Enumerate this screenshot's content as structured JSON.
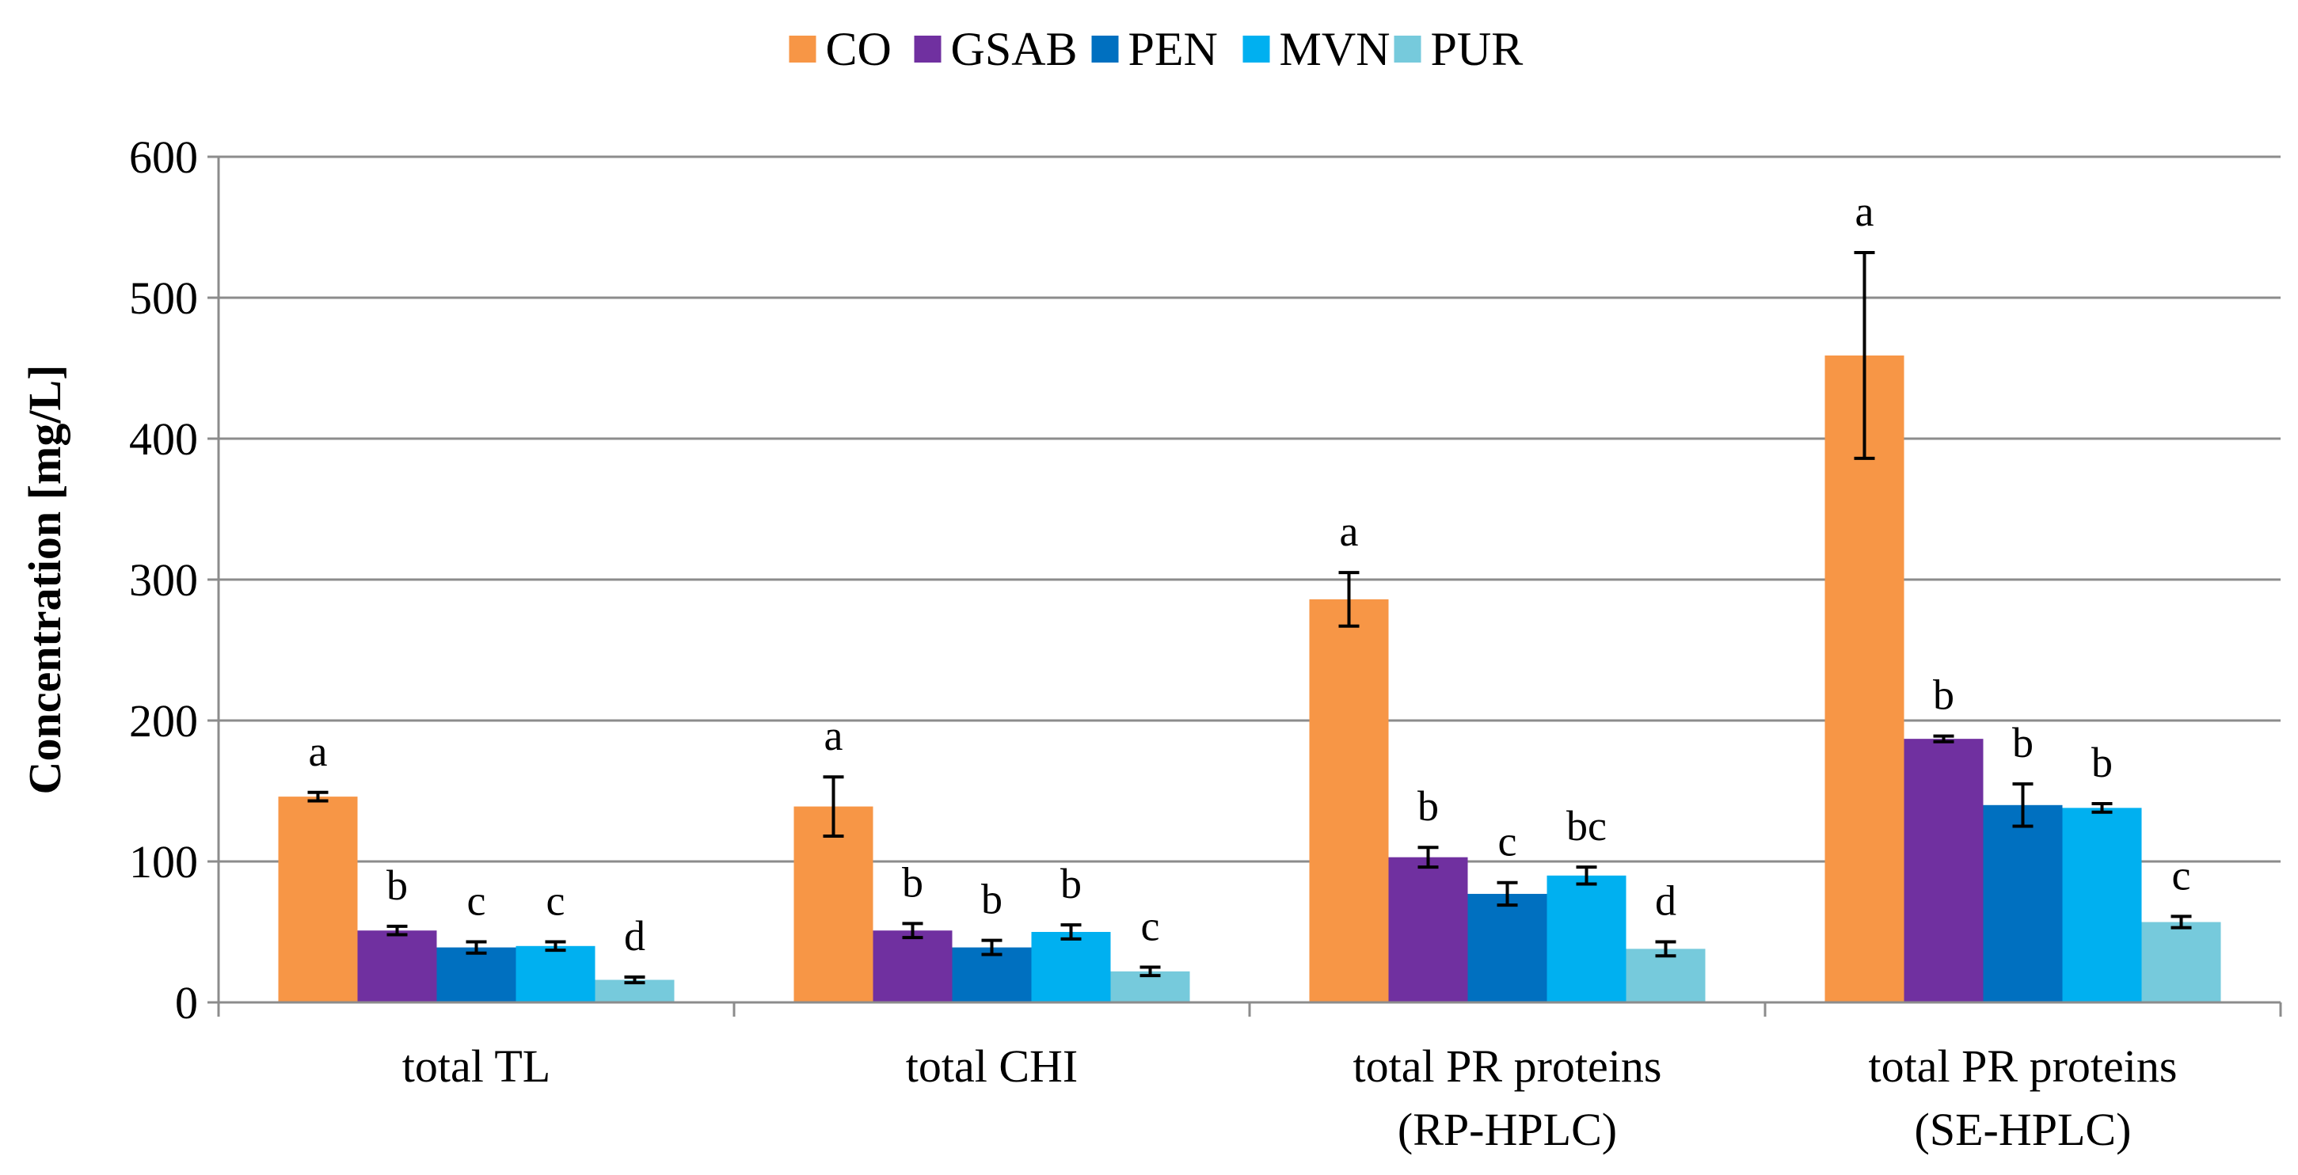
{
  "chart_data": {
    "type": "bar",
    "title": "",
    "xlabel": "",
    "ylabel": "Concentration [mg/L]",
    "ylim": [
      0,
      600
    ],
    "yticks": [
      "0",
      "100",
      "200",
      "300",
      "400",
      "500",
      "600"
    ],
    "grid": true,
    "legend_position": "top-center",
    "categories": [
      [
        "total TL"
      ],
      [
        "total CHI"
      ],
      [
        "total PR proteins",
        "(RP-HPLC)"
      ],
      [
        "total PR proteins",
        "(SE-HPLC)"
      ]
    ],
    "series": [
      {
        "name": "CO",
        "color": "#F79646",
        "values": [
          146,
          139,
          286,
          459
        ],
        "errors": [
          3,
          21,
          19,
          73
        ],
        "labels": [
          "a",
          "a",
          "a",
          "a"
        ]
      },
      {
        "name": "GSAB",
        "color": "#7030A0",
        "values": [
          51,
          51,
          103,
          187
        ],
        "errors": [
          3,
          5,
          7,
          2
        ],
        "labels": [
          "b",
          "b",
          "b",
          "b"
        ]
      },
      {
        "name": "PEN",
        "color": "#0070C0",
        "values": [
          39,
          39,
          77,
          140
        ],
        "errors": [
          4,
          5,
          8,
          15
        ],
        "labels": [
          "c",
          "b",
          "c",
          "b"
        ]
      },
      {
        "name": "MVN",
        "color": "#00B0F0",
        "values": [
          40,
          50,
          90,
          138
        ],
        "errors": [
          3,
          5,
          6,
          3
        ],
        "labels": [
          "c",
          "b",
          "bc",
          "b"
        ]
      },
      {
        "name": "PUR",
        "color": "#76CADC",
        "values": [
          16,
          22,
          38,
          57
        ],
        "errors": [
          2,
          3,
          5,
          4
        ],
        "labels": [
          "d",
          "c",
          "d",
          "c"
        ]
      }
    ]
  }
}
